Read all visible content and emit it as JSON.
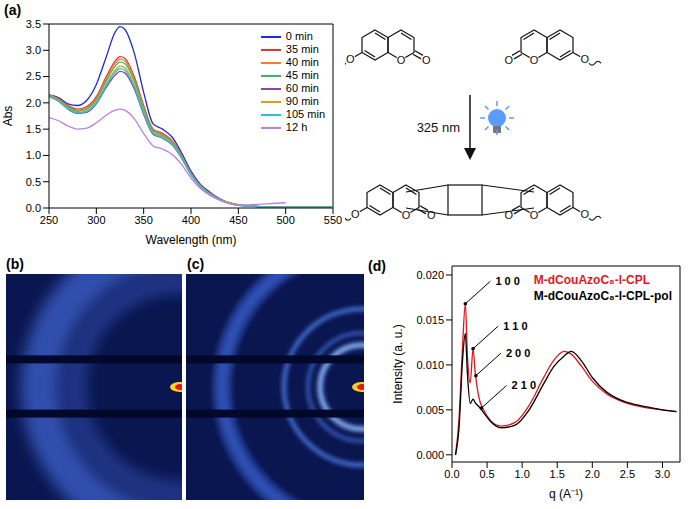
{
  "panel_labels": [
    "(a)",
    "(b)",
    "(c)",
    "(d)"
  ],
  "scheme": {
    "arrow_label": "325 nm",
    "atom": "O"
  },
  "chart_data": [
    {
      "type": "line",
      "xlabel": "Wavelength (nm)",
      "ylabel": "Abs",
      "legend": "upper right",
      "x": [
        250,
        260,
        270,
        280,
        290,
        300,
        310,
        320,
        325,
        330,
        340,
        350,
        360,
        370,
        380,
        390,
        400,
        410,
        420,
        430,
        440,
        450,
        460,
        480,
        500,
        550
      ],
      "xlim": [
        250,
        550
      ],
      "xticks": [
        250,
        300,
        350,
        400,
        450,
        500,
        550
      ],
      "ylim": [
        0,
        3.5
      ],
      "yticks": [
        {
          "value": 0,
          "label": "0.0"
        },
        0.5,
        {
          "value": 1,
          "label": "1.0"
        },
        1.5,
        {
          "value": 2,
          "label": "2.0"
        },
        2.5,
        {
          "value": 3,
          "label": "3.0"
        },
        3.5
      ],
      "series": [
        {
          "name": "0 min",
          "color": "#1f2bd6",
          "values": [
            2.15,
            2.1,
            1.98,
            1.95,
            2.05,
            2.35,
            2.85,
            3.35,
            3.45,
            3.4,
            2.95,
            2.2,
            1.6,
            1.5,
            1.35,
            1.05,
            0.7,
            0.45,
            0.3,
            0.18,
            0.1,
            0.06,
            0.04,
            0.02,
            0.01,
            0.01
          ]
        },
        {
          "name": "35 min",
          "color": "#e0352e",
          "values": [
            2.15,
            2.08,
            1.95,
            1.88,
            1.93,
            2.12,
            2.48,
            2.8,
            2.88,
            2.85,
            2.5,
            1.95,
            1.5,
            1.42,
            1.28,
            1.0,
            0.67,
            0.43,
            0.28,
            0.17,
            0.1,
            0.06,
            0.04,
            0.02,
            0.01,
            0.01
          ]
        },
        {
          "name": "40 min",
          "color": "#f08020",
          "values": [
            2.15,
            2.07,
            1.93,
            1.86,
            1.9,
            2.09,
            2.44,
            2.75,
            2.83,
            2.8,
            2.46,
            1.92,
            1.48,
            1.4,
            1.26,
            0.99,
            0.66,
            0.42,
            0.28,
            0.17,
            0.1,
            0.06,
            0.04,
            0.02,
            0.01,
            0.01
          ]
        },
        {
          "name": "45 min",
          "color": "#3cb371",
          "values": [
            2.14,
            2.06,
            1.92,
            1.84,
            1.88,
            2.06,
            2.4,
            2.7,
            2.78,
            2.75,
            2.42,
            1.89,
            1.46,
            1.38,
            1.25,
            0.98,
            0.65,
            0.42,
            0.27,
            0.16,
            0.1,
            0.06,
            0.04,
            0.02,
            0.01,
            0.01
          ]
        },
        {
          "name": "60 min",
          "color": "#8e44ad",
          "values": [
            2.12,
            2.03,
            1.88,
            1.8,
            1.82,
            1.98,
            2.28,
            2.53,
            2.6,
            2.57,
            2.27,
            1.78,
            1.4,
            1.33,
            1.2,
            0.95,
            0.63,
            0.4,
            0.26,
            0.16,
            0.09,
            0.05,
            0.04,
            0.02,
            0.01,
            0.01
          ]
        },
        {
          "name": "90 min",
          "color": "#d4a017",
          "values": [
            2.13,
            2.05,
            1.9,
            1.82,
            1.85,
            2.02,
            2.34,
            2.62,
            2.7,
            2.67,
            2.35,
            1.84,
            1.43,
            1.36,
            1.23,
            0.97,
            0.64,
            0.41,
            0.27,
            0.16,
            0.1,
            0.06,
            0.04,
            0.02,
            0.01,
            0.01
          ]
        },
        {
          "name": "105 min",
          "color": "#1fc6d6",
          "values": [
            2.12,
            2.04,
            1.89,
            1.81,
            1.84,
            2.0,
            2.31,
            2.58,
            2.65,
            2.62,
            2.31,
            1.81,
            1.42,
            1.34,
            1.21,
            0.96,
            0.64,
            0.41,
            0.26,
            0.16,
            0.09,
            0.05,
            0.04,
            0.02,
            0.01,
            0.01
          ]
        },
        {
          "name": "12 h",
          "color": "#c080e0",
          "values": [
            1.72,
            1.66,
            1.56,
            1.5,
            1.52,
            1.62,
            1.76,
            1.86,
            1.88,
            1.86,
            1.7,
            1.42,
            1.18,
            1.12,
            1.02,
            0.83,
            0.57,
            0.37,
            0.24,
            0.15,
            0.09,
            0.06,
            0.06,
            0.08,
            0.1,
            null
          ]
        }
      ]
    },
    {
      "type": "line",
      "xlabel": "q (A⁻¹)",
      "ylabel": "Intensity (a. u.)",
      "legend": "upper right",
      "x": [
        0.05,
        0.1,
        0.15,
        0.19,
        0.22,
        0.26,
        0.3,
        0.33,
        0.38,
        0.45,
        0.55,
        0.7,
        0.9,
        1.1,
        1.3,
        1.45,
        1.6,
        1.7,
        1.85,
        2.0,
        2.2,
        2.4,
        2.6,
        2.8,
        3.0,
        3.2
      ],
      "xlim": [
        0,
        3.25
      ],
      "xticks": [
        {
          "value": 0,
          "label": "0.0"
        },
        0.5,
        {
          "value": 1,
          "label": "1.0"
        },
        1.5,
        {
          "value": 2,
          "label": "2.0"
        },
        2.5,
        {
          "value": 3,
          "label": "3.0"
        }
      ],
      "ylim": [
        -0.0008,
        0.021
      ],
      "yticks": [
        {
          "value": 0,
          "label": "0.000"
        },
        0.005,
        {
          "value": 0.01,
          "label": "0.010"
        },
        0.015,
        {
          "value": 0.02,
          "label": "0.020"
        }
      ],
      "series": [
        {
          "name": "M-dCouAzoC₈-l-CPL",
          "color": "#e8141c",
          "values": [
            0.0,
            0.004,
            0.012,
            0.0168,
            0.011,
            0.008,
            0.0118,
            0.0092,
            0.0065,
            0.005,
            0.0038,
            0.0032,
            0.0036,
            0.0055,
            0.0085,
            0.0105,
            0.0115,
            0.0112,
            0.0098,
            0.0082,
            0.0068,
            0.006,
            0.0055,
            0.0052,
            0.005,
            0.0048
          ]
        },
        {
          "name": "M-dCouAzoC₈-l-CPL-pol",
          "color": "#000000",
          "values": [
            0.0,
            0.003,
            0.0105,
            0.0135,
            0.009,
            0.0057,
            0.0062,
            0.0058,
            0.0054,
            0.0047,
            0.0037,
            0.003,
            0.0033,
            0.005,
            0.0078,
            0.0098,
            0.011,
            0.0115,
            0.0104,
            0.0086,
            0.007,
            0.0061,
            0.0056,
            0.0053,
            0.005,
            0.0048
          ]
        }
      ],
      "annotations": [
        {
          "text": "1 0 0",
          "x": 0.19,
          "y": 0.0168
        },
        {
          "text": "1 1 0",
          "x": 0.3,
          "y": 0.0118
        },
        {
          "text": "2 0 0",
          "x": 0.34,
          "y": 0.0088
        },
        {
          "text": "2 1 0",
          "x": 0.42,
          "y": 0.0052
        }
      ]
    }
  ]
}
